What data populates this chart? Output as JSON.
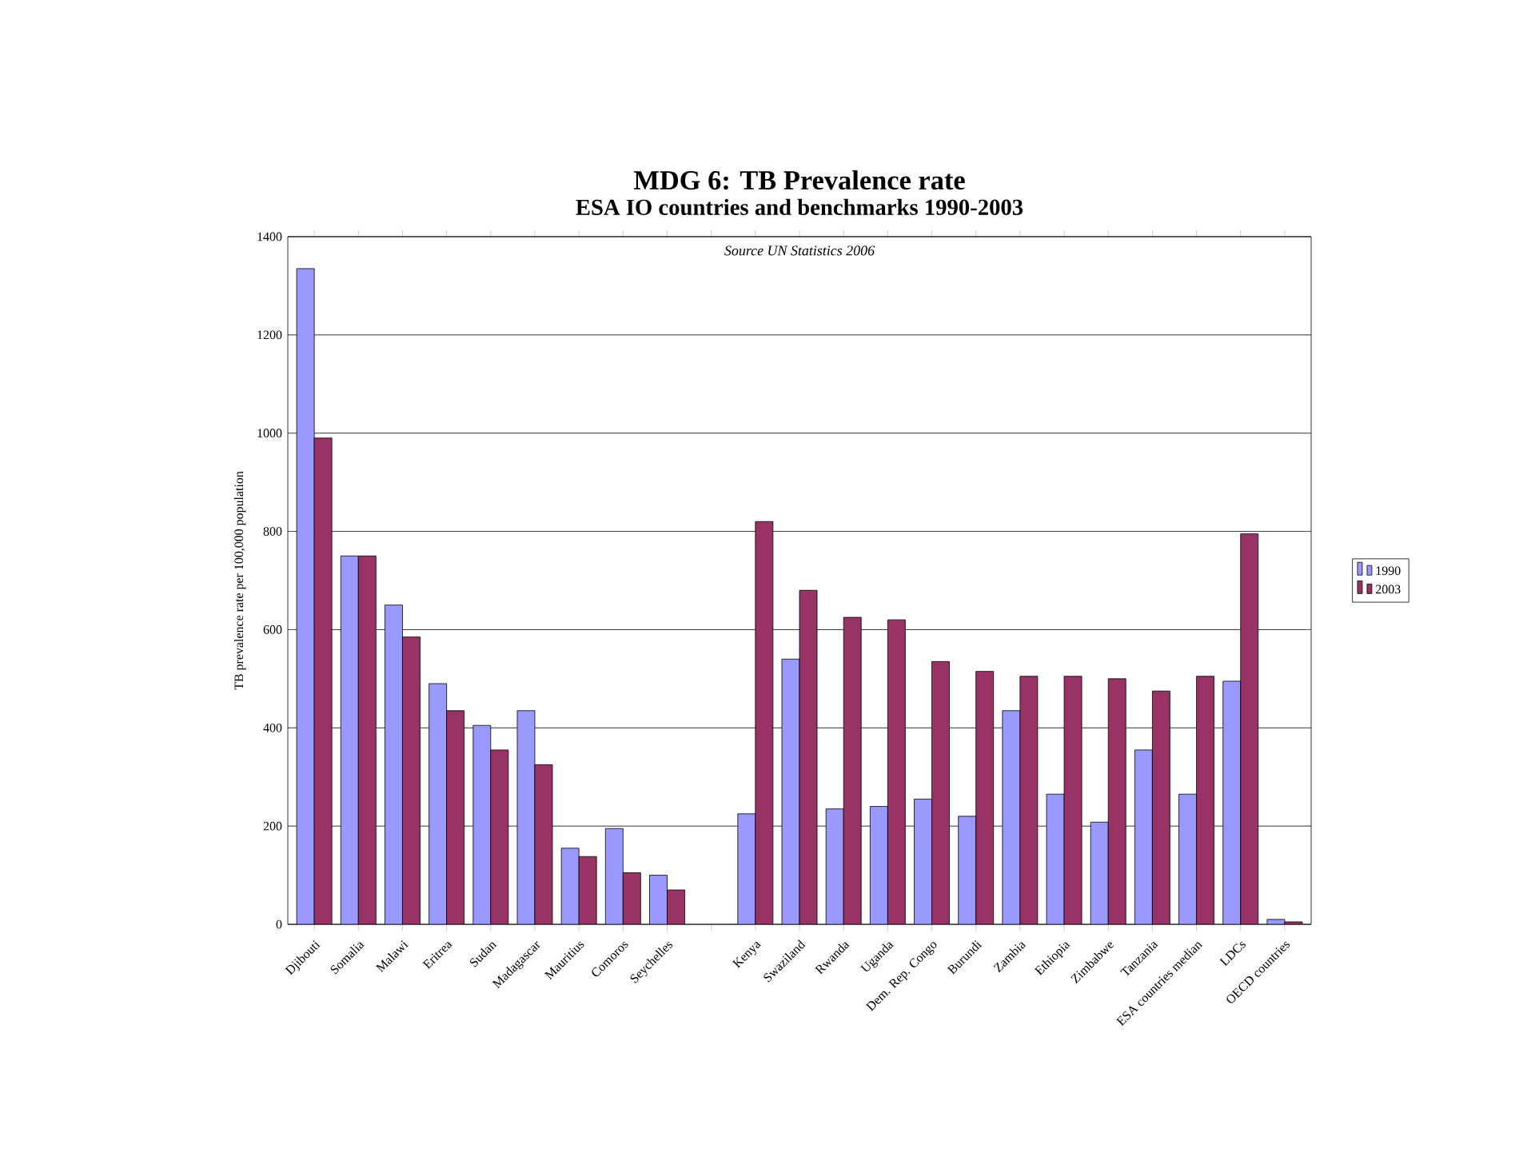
{
  "chart_data": {
    "type": "bar",
    "title": "MDG 6: TB Prevalence rate",
    "subtitle": "ESA IO countries and benchmarks 1990-2003",
    "ylabel": "TB prevalence rate per 100,000 population",
    "annotations": [
      "Source UN Statistics 2006"
    ],
    "categories": [
      "Djibouti",
      "Somalia",
      "Malawi",
      "Eritrea",
      "Sudan",
      "Madagascar",
      "Mauritius",
      "Comoros",
      "Seychelles",
      null,
      "Kenya",
      "Swaziland",
      "Rwanda",
      "Uganda",
      "Dem. Rep. Congo",
      "Burundi",
      "Zambia",
      "Ethiopia",
      "Zimbabwe",
      "Tanzania",
      "ESA countries median",
      "LDCs",
      "OECD countries"
    ],
    "series": [
      {
        "name": "1990",
        "color": "#9999ff",
        "values": [
          1335,
          750,
          650,
          490,
          405,
          435,
          155,
          195,
          100,
          null,
          225,
          540,
          235,
          240,
          255,
          220,
          435,
          265,
          208,
          355,
          265,
          495,
          10
        ]
      },
      {
        "name": "2003",
        "color": "#993366",
        "values": [
          990,
          750,
          585,
          435,
          355,
          325,
          138,
          105,
          70,
          null,
          820,
          680,
          625,
          620,
          535,
          515,
          505,
          505,
          500,
          475,
          505,
          795,
          5
        ]
      }
    ],
    "ylim": [
      0,
      1400
    ],
    "yticks": [
      0,
      200,
      400,
      600,
      800,
      1000,
      1200,
      1400
    ],
    "grid": "y",
    "legend": "right"
  }
}
